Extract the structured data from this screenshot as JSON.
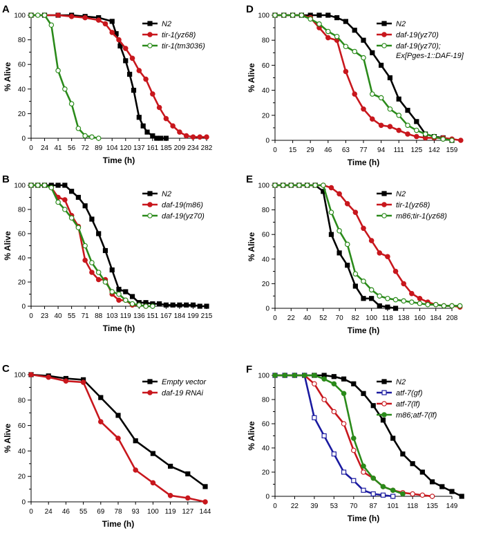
{
  "figure": {
    "width": 699,
    "height": 800
  },
  "colors": {
    "black": "#000000",
    "red": "#c8171d",
    "green": "#2a8a1a",
    "blue": "#1a1aa0"
  },
  "chart_data": [
    {
      "panel": "A",
      "type": "line",
      "xlabel": "Time (h)",
      "ylabel": "% Alive",
      "xticks": [
        "0",
        "24",
        "41",
        "56",
        "72",
        "89",
        "104",
        "120",
        "137",
        "161",
        "185",
        "209",
        "234",
        "282"
      ],
      "ylim": [
        0,
        100
      ],
      "yticks": [
        "0",
        "20",
        "40",
        "60",
        "80",
        "100"
      ],
      "legend_position": "top-right",
      "series": [
        {
          "name": "N2",
          "color": "black",
          "marker": "square-filled",
          "x": [
            0,
            1,
            2,
            3,
            4,
            5,
            6,
            6.3,
            6.6,
            7,
            7.3,
            7.6,
            8,
            8.3,
            8.6,
            9,
            9.3,
            9.6,
            10
          ],
          "y": [
            100,
            100,
            100,
            100,
            99,
            98,
            95,
            85,
            75,
            63,
            52,
            39,
            17,
            10,
            5,
            2,
            0,
            0,
            0
          ]
        },
        {
          "name": "tir-1(yz68)",
          "color": "red",
          "marker": "circle-filled",
          "x": [
            0,
            1,
            2,
            3,
            4,
            5,
            5.5,
            6,
            6.5,
            7,
            7.5,
            8,
            8.5,
            9,
            9.5,
            10,
            10.5,
            11,
            11.5,
            12,
            12.5,
            13
          ],
          "y": [
            100,
            100,
            100,
            99,
            98,
            96,
            93,
            86,
            80,
            73,
            65,
            55,
            48,
            36,
            25,
            16,
            10,
            5,
            2,
            1,
            1,
            1
          ]
        },
        {
          "name": "tir-1(tm3036)",
          "color": "green",
          "marker": "circle-open",
          "x": [
            0,
            0.5,
            1,
            1.5,
            2,
            2.5,
            3,
            3.5,
            4,
            4.5,
            5
          ],
          "y": [
            100,
            100,
            100,
            92,
            55,
            40,
            28,
            8,
            2,
            1,
            0
          ]
        }
      ]
    },
    {
      "panel": "B",
      "type": "line",
      "xlabel": "Time (h)",
      "ylabel": "% Alive",
      "xticks": [
        "0",
        "23",
        "40",
        "55",
        "71",
        "88",
        "103",
        "119",
        "136",
        "151",
        "167",
        "184",
        "199",
        "215"
      ],
      "ylim": [
        0,
        100
      ],
      "yticks": [
        "0",
        "20",
        "40",
        "60",
        "80",
        "100"
      ],
      "legend_position": "top-right",
      "series": [
        {
          "name": "N2",
          "color": "black",
          "marker": "square-filled",
          "x": [
            0,
            0.5,
            1,
            1.5,
            2,
            2.5,
            3,
            3.5,
            4,
            4.5,
            5,
            5.5,
            6,
            6.5,
            7,
            7.5,
            8,
            8.5,
            9,
            9.5,
            10,
            10.5,
            11,
            11.5,
            12,
            12.5,
            13
          ],
          "y": [
            100,
            100,
            100,
            100,
            100,
            100,
            95,
            90,
            83,
            72,
            60,
            46,
            30,
            14,
            12,
            8,
            3,
            3,
            2,
            2,
            1,
            1,
            1,
            1,
            1,
            0,
            0
          ]
        },
        {
          "name": "daf-19(m86)",
          "color": "red",
          "marker": "circle-filled",
          "x": [
            0,
            0.5,
            1,
            1.5,
            2,
            2.5,
            3,
            3.5,
            4,
            4.5,
            5,
            5.5,
            6,
            6.5,
            7,
            7.5,
            8,
            8.5
          ],
          "y": [
            100,
            100,
            100,
            98,
            90,
            88,
            75,
            66,
            38,
            28,
            22,
            22,
            10,
            5,
            5,
            1,
            1,
            0
          ]
        },
        {
          "name": "daf-19(yz70)",
          "color": "green",
          "marker": "circle-open",
          "x": [
            0,
            0.5,
            1,
            1.5,
            2,
            2.5,
            3,
            3.5,
            4,
            4.5,
            5,
            5.5,
            6,
            6.5,
            7,
            7.5,
            8,
            8.5,
            9
          ],
          "y": [
            100,
            100,
            100,
            98,
            86,
            80,
            73,
            65,
            50,
            36,
            28,
            20,
            12,
            10,
            5,
            2,
            1,
            0,
            0
          ]
        }
      ]
    },
    {
      "panel": "C",
      "type": "line",
      "xlabel": "Time (h)",
      "ylabel": "% Alive",
      "xticks": [
        "0",
        "24",
        "46",
        "55",
        "69",
        "78",
        "93",
        "100",
        "119",
        "127",
        "144"
      ],
      "ylim": [
        0,
        100
      ],
      "yticks": [
        "0",
        "20",
        "40",
        "60",
        "80",
        "100"
      ],
      "legend_position": "top-right",
      "series": [
        {
          "name": "Empty vector",
          "color": "black",
          "marker": "square-filled",
          "x": [
            0,
            1,
            2,
            3,
            4,
            5,
            6,
            7,
            8,
            9,
            10
          ],
          "y": [
            100,
            99,
            97,
            96,
            82,
            68,
            48,
            38,
            28,
            22,
            12
          ]
        },
        {
          "name": "daf-19 RNAi",
          "color": "red",
          "marker": "circle-filled",
          "x": [
            0,
            1,
            2,
            3,
            4,
            5,
            6,
            7,
            8,
            9,
            10
          ],
          "y": [
            100,
            98,
            95,
            94,
            63,
            50,
            25,
            15,
            5,
            3,
            0
          ]
        }
      ]
    },
    {
      "panel": "D",
      "type": "line",
      "xlabel": "Time (h)",
      "ylabel": "% Alive",
      "xticks": [
        "0",
        "15",
        "29",
        "46",
        "63",
        "77",
        "94",
        "111",
        "125",
        "142",
        "159"
      ],
      "ylim": [
        0,
        100
      ],
      "yticks": [
        "0",
        "20",
        "40",
        "60",
        "80",
        "100"
      ],
      "legend_position": "top-right",
      "series": [
        {
          "name": "N2",
          "color": "black",
          "marker": "square-filled",
          "x": [
            0,
            0.5,
            1,
            1.5,
            2,
            2.5,
            3,
            3.5,
            4,
            4.5,
            5,
            5.5,
            6,
            6.5,
            7,
            7.5,
            8,
            8.5,
            9,
            9.5,
            10
          ],
          "y": [
            100,
            100,
            100,
            100,
            100,
            100,
            100,
            98,
            95,
            88,
            80,
            70,
            60,
            50,
            33,
            24,
            15,
            5,
            3,
            2,
            0
          ]
        },
        {
          "name": "daf-19(yz70)",
          "color": "red",
          "marker": "circle-filled",
          "x": [
            0,
            0.5,
            1,
            1.5,
            2,
            2.5,
            3,
            3.5,
            4,
            4.5,
            5,
            5.5,
            6,
            6.5,
            7,
            7.5,
            8,
            8.5,
            9,
            9.5,
            10,
            10.5
          ],
          "y": [
            100,
            100,
            100,
            100,
            98,
            90,
            82,
            80,
            55,
            37,
            25,
            17,
            12,
            11,
            8,
            5,
            3,
            2,
            2,
            2,
            1,
            0
          ]
        },
        {
          "name": "daf-19(yz70); Ex[Pges-1::DAF-19]",
          "color": "green",
          "marker": "circle-open",
          "x": [
            0,
            0.5,
            1,
            1.5,
            2,
            2.5,
            3,
            3.5,
            4,
            4.5,
            5,
            5.5,
            6,
            6.5,
            7,
            7.5,
            8,
            8.5,
            9,
            9.5,
            10
          ],
          "y": [
            100,
            100,
            100,
            100,
            97,
            93,
            87,
            83,
            75,
            71,
            66,
            37,
            34,
            25,
            20,
            12,
            8,
            5,
            3,
            1,
            0
          ]
        }
      ]
    },
    {
      "panel": "E",
      "type": "line",
      "xlabel": "Time (h)",
      "ylabel": "% Alive",
      "xticks": [
        "0",
        "22",
        "40",
        "52",
        "70",
        "82",
        "100",
        "118",
        "138",
        "160",
        "184",
        "208"
      ],
      "ylim": [
        0,
        100
      ],
      "yticks": [
        "0",
        "20",
        "40",
        "60",
        "80",
        "100"
      ],
      "legend_position": "top-right",
      "series": [
        {
          "name": "N2",
          "color": "black",
          "marker": "square-filled",
          "x": [
            0,
            0.5,
            1,
            1.5,
            2,
            2.5,
            3,
            3.5,
            4,
            4.5,
            5,
            5.5,
            6,
            6.5,
            7,
            7.5
          ],
          "y": [
            100,
            100,
            100,
            100,
            100,
            100,
            95,
            60,
            45,
            35,
            18,
            8,
            8,
            2,
            1,
            0
          ]
        },
        {
          "name": "tir-1(yz68)",
          "color": "red",
          "marker": "circle-filled",
          "x": [
            0,
            0.5,
            1,
            1.5,
            2,
            2.5,
            3,
            3.5,
            4,
            4.5,
            5,
            5.5,
            6,
            6.5,
            7,
            7.5,
            8,
            8.5,
            9,
            9.5,
            10,
            10.5,
            11,
            11.5
          ],
          "y": [
            100,
            100,
            100,
            100,
            100,
            100,
            100,
            98,
            93,
            85,
            78,
            65,
            55,
            45,
            42,
            30,
            20,
            12,
            8,
            5,
            3,
            2,
            2,
            1
          ]
        },
        {
          "name": "m86;tir-1(yz68)",
          "color": "green",
          "marker": "circle-open",
          "x": [
            0,
            0.5,
            1,
            1.5,
            2,
            2.5,
            3,
            3.5,
            4,
            4.5,
            5,
            5.5,
            6,
            6.5,
            7,
            7.5,
            8,
            8.5,
            9,
            9.5,
            10,
            10.5,
            11,
            11.5
          ],
          "y": [
            100,
            100,
            100,
            100,
            100,
            100,
            100,
            78,
            63,
            52,
            28,
            22,
            15,
            10,
            8,
            7,
            6,
            5,
            4,
            3,
            3,
            2,
            2,
            2
          ]
        }
      ]
    },
    {
      "panel": "F",
      "type": "line",
      "xlabel": "Time (h)",
      "ylabel": "% Alive",
      "xticks": [
        "0",
        "22",
        "39",
        "53",
        "70",
        "87",
        "101",
        "118",
        "135",
        "149"
      ],
      "ylim": [
        0,
        100
      ],
      "yticks": [
        "0",
        "20",
        "40",
        "60",
        "80",
        "100"
      ],
      "legend_position": "top-right",
      "series": [
        {
          "name": "N2",
          "color": "black",
          "marker": "square-filled",
          "x": [
            0,
            0.5,
            1,
            1.5,
            2,
            2.5,
            3,
            3.5,
            4,
            4.5,
            5,
            5.5,
            6,
            6.5,
            7,
            7.5,
            8,
            8.5,
            9,
            9.5
          ],
          "y": [
            100,
            100,
            100,
            100,
            100,
            100,
            99,
            97,
            93,
            85,
            75,
            63,
            48,
            35,
            27,
            20,
            12,
            8,
            4,
            0
          ]
        },
        {
          "name": "atf-7(gf)",
          "color": "blue",
          "marker": "square-open",
          "x": [
            0,
            0.5,
            1,
            1.5,
            2,
            2.5,
            3,
            3.5,
            4,
            4.5,
            5,
            5.5,
            6
          ],
          "y": [
            100,
            100,
            100,
            100,
            65,
            50,
            35,
            20,
            13,
            5,
            2,
            1,
            0
          ]
        },
        {
          "name": "atf-7(lf)",
          "color": "red",
          "marker": "circle-open",
          "x": [
            0,
            0.5,
            1,
            1.5,
            2,
            2.5,
            3,
            3.5,
            4,
            4.5,
            5,
            5.5,
            6,
            6.5,
            7,
            7.5,
            8
          ],
          "y": [
            100,
            100,
            100,
            100,
            93,
            80,
            70,
            60,
            38,
            20,
            15,
            8,
            5,
            3,
            2,
            1,
            0
          ]
        },
        {
          "name": "m86;atf-7(lf)",
          "color": "green",
          "marker": "circle-filled",
          "x": [
            0,
            0.5,
            1,
            1.5,
            2,
            2.5,
            3,
            3.5,
            4,
            4.5,
            5,
            5.5,
            6,
            6.5
          ],
          "y": [
            100,
            100,
            100,
            100,
            100,
            97,
            93,
            85,
            48,
            25,
            15,
            8,
            5,
            2
          ]
        }
      ]
    }
  ]
}
